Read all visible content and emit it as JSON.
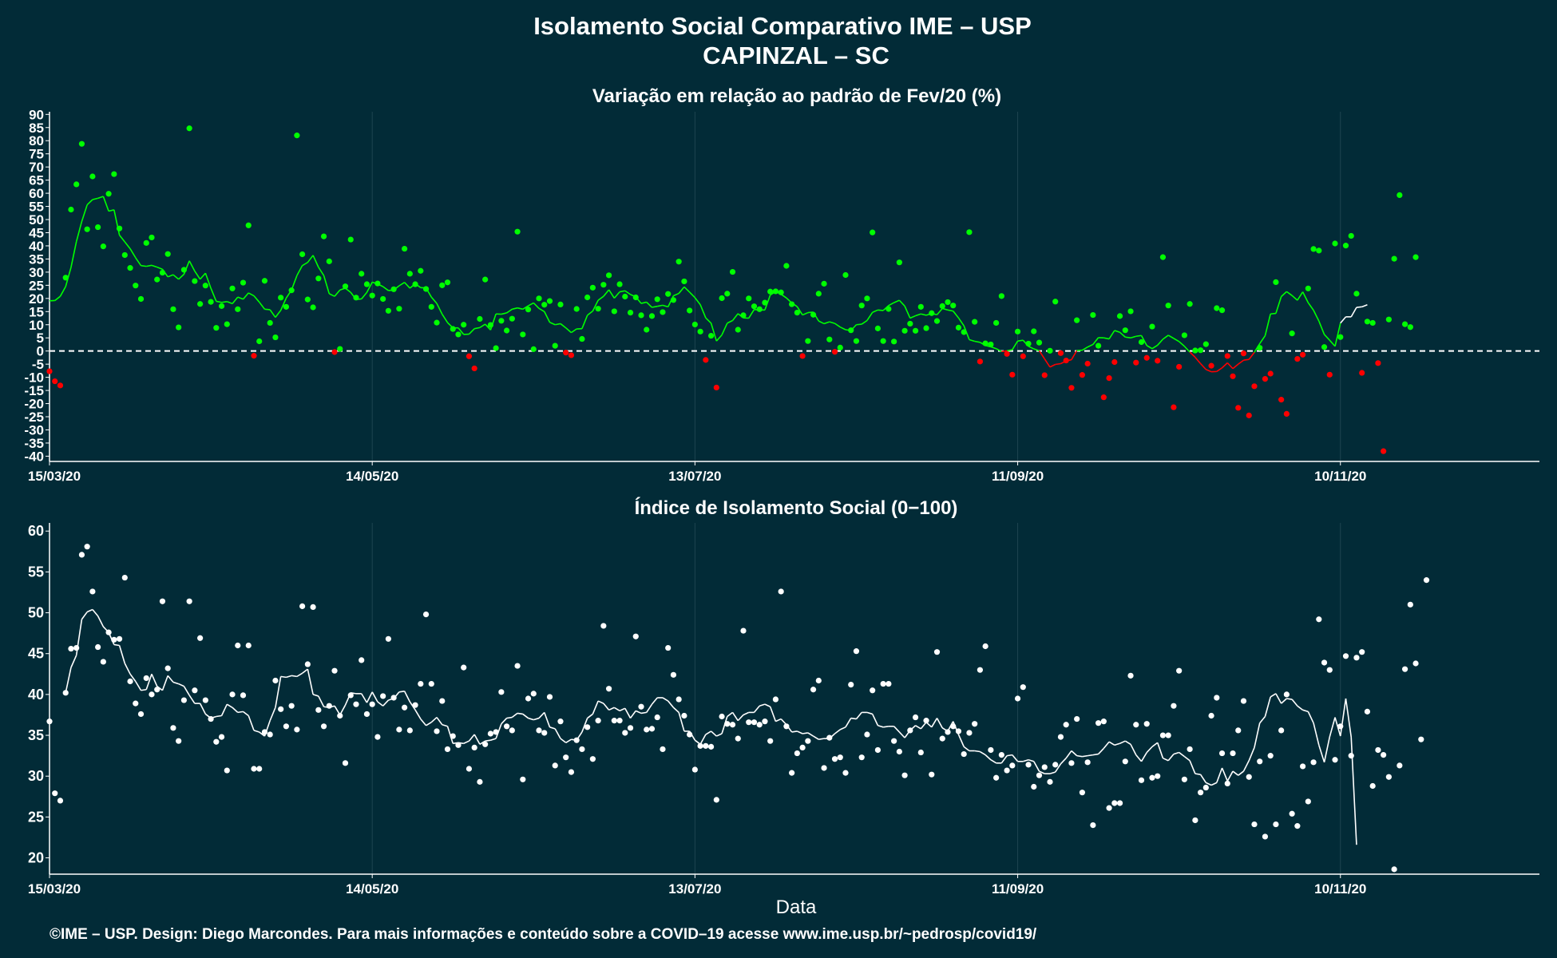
{
  "title": "Isolamento Social Comparativo IME – USP",
  "subtitle": "CAPINZAL – SC",
  "x_label": "Data",
  "footer": "©IME – USP. Design: Diego Marcondes. Para mais informações e conteúdo sobre a COVID–19 acesse www.ime.usp.br/~pedrosp/covid19/",
  "colors": {
    "background": "#022b37",
    "positive": "#00ff00",
    "negative": "#ff0000",
    "index": "#ffffff",
    "grid": "#1e4550",
    "axis": "#ffffff"
  },
  "x_axis": {
    "start_date": "15/03/20",
    "end_date": "17/12/20",
    "tick_labels": [
      "15/03/20",
      "14/05/20",
      "13/07/20",
      "11/09/20",
      "10/11/20"
    ]
  },
  "chart_data": [
    {
      "type": "scatter",
      "title": "Variação em relação ao padrão de Fev/20 (%)",
      "ylim": [
        -42,
        91
      ],
      "yticks": [
        -40,
        -35,
        -30,
        -25,
        -20,
        -15,
        -10,
        -5,
        0,
        5,
        10,
        15,
        20,
        25,
        30,
        35,
        40,
        45,
        50,
        55,
        60,
        65,
        70,
        75,
        80,
        85,
        90
      ],
      "reference_line": 0,
      "points": [
        -7.7,
        -11.5,
        -13.1,
        27.9,
        53.8,
        63.4,
        78.8,
        46.3,
        66.4,
        47.1,
        39.8,
        59.8,
        67.3,
        46.6,
        36.5,
        31.6,
        24.9,
        19.8,
        41.1,
        43.2,
        27.2,
        29.8,
        36.9,
        15.9,
        9.0,
        30.9,
        84.7,
        26.6,
        17.9,
        24.9,
        18.7,
        8.8,
        17.1,
        10.2,
        23.8,
        15.9,
        26.0,
        47.8,
        -1.8,
        3.7,
        26.7,
        10.7,
        5.2,
        20.3,
        16.8,
        23.1,
        82.0,
        36.8,
        19.6,
        16.6,
        27.6,
        43.6,
        34.1,
        -0.4,
        0.8,
        24.6,
        42.4,
        20.3,
        29.4,
        25.4,
        21.1,
        25.7,
        19.8,
        15.3,
        23.5,
        16.1,
        38.9,
        29.4,
        25.4,
        30.5,
        23.6,
        16.8,
        10.8,
        25.0,
        26.1,
        8.4,
        6.3,
        10.0,
        -2.0,
        -6.6,
        12.2,
        27.2,
        9.9,
        1.1,
        11.5,
        7.8,
        12.3,
        45.4,
        6.3,
        15.8,
        0.7,
        20.0,
        17.6,
        19.0,
        2.0,
        17.7,
        -0.6,
        -1.6,
        16.0,
        4.6,
        20.4,
        24.1,
        16.1,
        25.2,
        28.8,
        15.1,
        25.4,
        20.7,
        14.6,
        20.4,
        13.6,
        8.1,
        13.3,
        19.7,
        14.8,
        21.7,
        19.4,
        34.0,
        26.5,
        15.4,
        10.1,
        7.4,
        -3.4,
        5.8,
        -13.9,
        20.1,
        21.8,
        30.1,
        8.1,
        13.6,
        20.0,
        17.0,
        15.9,
        18.4,
        22.6,
        22.7,
        22.3,
        32.4,
        17.8,
        14.6,
        -1.9,
        3.8,
        13.8,
        21.8,
        25.6,
        4.4,
        -0.3,
        1.3,
        28.9,
        7.9,
        3.8,
        17.3,
        20.0,
        45.1,
        8.6,
        3.8,
        16.0,
        3.6,
        33.7,
        7.7,
        10.4,
        7.7,
        16.8,
        8.7,
        14.4,
        11.4,
        17.1,
        18.6,
        17.3,
        8.9,
        7.2,
        45.2,
        11.1,
        -4.0,
        2.9,
        2.5,
        10.7,
        20.9,
        -1.1,
        -9.0,
        7.4,
        -2.0,
        2.8,
        7.5,
        3.2,
        -9.2,
        0.1,
        18.8,
        -0.8,
        -3.6,
        -14.0,
        11.7,
        -9.1,
        -4.8,
        13.7,
        2.0,
        -17.6,
        -10.3,
        -4.2,
        13.3,
        7.9,
        15.1,
        -4.4,
        3.4,
        -2.6,
        9.3,
        -3.7,
        35.7,
        17.3,
        -21.4,
        -6.0,
        6.0,
        17.9,
        0.2,
        0.3,
        2.6,
        -5.6,
        16.3,
        15.5,
        -1.9,
        -9.6,
        -21.6,
        -0.9,
        -24.5,
        -13.4,
        1.2,
        -10.6,
        -8.6,
        26.2,
        -18.5,
        -23.9,
        6.7,
        -3.0,
        -1.4,
        23.8,
        38.8,
        38.2,
        1.5,
        -9.0,
        40.9,
        5.3,
        40.1,
        43.8,
        21.8,
        -8.3,
        11.2,
        10.7,
        -4.6,
        -38.1,
        12.0,
        35.1,
        59.3,
        10.2,
        9.1,
        35.7
      ],
      "moving_average": [
        19.1,
        19.2,
        20.8,
        24.5,
        31.8,
        41.6,
        49.3,
        55.6,
        57.6,
        58.1,
        58.8,
        53.2,
        53.7,
        44.1,
        41.5,
        38.9,
        35.5,
        32.5,
        32.2,
        32.6,
        31.9,
        31.1,
        28.2,
        29.0,
        27.3,
        29.2,
        34.3,
        30.4,
        27.3,
        29.6,
        23.9,
        18.9,
        18.5,
        18.8,
        18.0,
        20.5,
        19.7,
        22.1,
        21.0,
        18.6,
        15.9,
        15.7,
        12.8,
        15.5,
        20.1,
        23.2,
        28.7,
        32.5,
        33.7,
        36.4,
        31.9,
        28.7,
        21.8,
        20.8,
        23.2,
        23.9,
        22.3,
        19.6,
        19.8,
        22.3,
        26.2,
        25.5,
        24.5,
        23.0,
        23.2,
        24.8,
        26.1,
        23.9,
        25.6,
        24.1,
        24.0,
        20.5,
        18.1,
        14.0,
        10.8,
        8.8,
        8.8,
        6.3,
        6.4,
        8.5,
        8.9,
        10.2,
        8.0,
        14.1,
        14.0,
        14.5,
        15.9,
        16.4,
        15.9,
        17.2,
        18.3,
        16.2,
        15.0,
        10.9,
        10.0,
        10.4,
        8.8,
        7.0,
        8.4,
        8.5,
        13.6,
        15.2,
        19.3,
        20.8,
        23.3,
        20.1,
        22.5,
        22.9,
        21.5,
        20.6,
        18.1,
        18.6,
        16.6,
        17.0,
        17.4,
        16.8,
        21.0,
        21.9,
        24.4,
        22.4,
        20.3,
        17.6,
        12.6,
        10.6,
        3.8,
        6.1,
        10.6,
        11.6,
        14.2,
        12.6,
        12.5,
        15.8,
        15.6,
        15.6,
        21.3,
        22.6,
        21.6,
        20.2,
        18.3,
        16.9,
        13.7,
        14.6,
        14.8,
        11.4,
        10.4,
        11.1,
        10.5,
        9.1,
        8.1,
        7.8,
        10.0,
        10.2,
        11.6,
        14.7,
        15.6,
        15.4,
        17.3,
        18.4,
        19.3,
        17.1,
        12.5,
        13.4,
        14.1,
        13.6,
        14.3,
        13.8,
        16.2,
        15.6,
        15.2,
        12.6,
        9.6,
        4.3,
        3.7,
        3.3,
        2.1,
        1.6,
        0.9,
        -0.2,
        0.1,
        0.5,
        3.8,
        4.1,
        1.8,
        0.8,
        0.1,
        -3.0,
        -6.1,
        -5.1,
        -4.8,
        -3.8,
        -3.3,
        0.2,
        0.3,
        1.5,
        2.5,
        5.1,
        5.0,
        4.6,
        7.8,
        7.1,
        5.3,
        5.0,
        5.6,
        5.9,
        2.1,
        0.9,
        2.2,
        4.5,
        6.0,
        4.8,
        3.6,
        1.8,
        -0.4,
        -2.4,
        -4.8,
        -7.0,
        -7.9,
        -7.8,
        -6.4,
        -4.5,
        -6.7,
        -5.0,
        -3.5,
        -3.2,
        -0.5,
        2.8,
        5.8,
        14.1,
        14.3,
        20.7,
        22.6,
        21.1,
        19.3,
        22.5,
        18.4,
        15.5,
        11.4,
        6.3,
        4.1,
        1.8,
        10.6,
        13.0,
        13.0,
        16.6,
        16.8,
        17.6
      ]
    },
    {
      "type": "scatter",
      "title": "Índice de Isolamento Social (0−100)",
      "ylim": [
        18,
        61
      ],
      "yticks": [
        20,
        25,
        30,
        35,
        40,
        45,
        50,
        55,
        60
      ],
      "points": [
        36.7,
        27.9,
        27.0,
        40.2,
        45.6,
        45.7,
        57.1,
        58.1,
        52.6,
        45.8,
        44.0,
        47.6,
        46.7,
        46.8,
        54.3,
        41.6,
        38.9,
        37.6,
        42.0,
        40.0,
        40.6,
        51.4,
        43.2,
        35.9,
        34.3,
        39.3,
        51.4,
        40.5,
        46.9,
        39.3,
        37.0,
        34.2,
        34.8,
        30.7,
        40.0,
        46.0,
        39.9,
        46.0,
        30.9,
        30.9,
        35.4,
        35.1,
        41.7,
        38.2,
        36.1,
        38.6,
        35.7,
        50.8,
        43.7,
        50.7,
        38.1,
        36.1,
        38.6,
        42.9,
        37.4,
        31.6,
        39.9,
        38.8,
        44.2,
        37.6,
        38.8,
        34.8,
        39.8,
        46.8,
        39.6,
        35.7,
        38.4,
        35.6,
        38.7,
        41.3,
        49.8,
        41.3,
        35.5,
        39.2,
        33.3,
        34.9,
        33.8,
        43.3,
        30.9,
        33.5,
        29.3,
        33.9,
        35.2,
        35.4,
        40.3,
        36.1,
        35.6,
        43.5,
        29.6,
        39.5,
        40.1,
        35.6,
        35.3,
        39.7,
        31.3,
        36.7,
        32.3,
        30.5,
        34.4,
        33.3,
        36.0,
        32.1,
        36.8,
        48.4,
        40.7,
        36.8,
        36.8,
        35.3,
        35.9,
        47.1,
        38.5,
        35.7,
        35.8,
        37.2,
        33.3,
        45.7,
        42.4,
        39.4,
        37.4,
        35.1,
        30.8,
        33.7,
        33.7,
        33.6,
        27.1,
        37.3,
        36.4,
        36.3,
        34.6,
        47.8,
        36.6,
        36.6,
        36.3,
        36.7,
        34.3,
        39.4,
        52.6,
        36.1,
        30.4,
        32.8,
        33.5,
        34.3,
        40.6,
        41.7,
        31.0,
        34.7,
        32.1,
        32.3,
        30.4,
        41.2,
        45.3,
        32.3,
        35.1,
        40.5,
        33.2,
        41.3,
        41.3,
        34.3,
        33.0,
        30.1,
        35.6,
        37.2,
        32.9,
        36.8,
        30.2,
        45.2,
        34.6,
        35.4,
        36.1,
        35.5,
        32.7,
        35.3,
        36.4,
        43.0,
        45.9,
        33.2,
        29.8,
        32.6,
        30.7,
        31.3,
        39.5,
        40.9,
        31.4,
        28.7,
        30.1,
        31.1,
        29.3,
        31.4,
        34.8,
        36.3,
        31.6,
        37.0,
        28.0,
        31.7,
        24.0,
        36.5,
        36.7,
        26.1,
        26.7,
        26.7,
        31.8,
        42.3,
        36.3,
        29.5,
        36.4,
        29.8,
        30.0,
        35.0,
        35.0,
        38.6,
        42.9,
        29.6,
        33.3,
        24.6,
        28.0,
        28.6,
        37.4,
        39.6,
        32.8,
        29.1,
        32.8,
        35.6,
        39.2,
        29.9,
        24.1,
        31.8,
        22.6,
        32.5,
        24.1,
        35.6,
        40.0,
        25.4,
        23.9,
        31.2,
        26.9,
        31.7,
        49.2,
        43.9,
        43.0,
        32.0,
        36.1,
        44.7,
        32.5,
        44.5,
        45.2,
        37.9,
        28.8,
        33.2,
        32.6,
        29.9,
        18.6,
        31.3,
        43.1,
        51.0,
        43.8,
        34.5,
        54.0
      ],
      "moving_average": [
        null,
        null,
        null,
        40.2,
        43.3,
        44.8,
        49.2,
        50.1,
        50.4,
        49.6,
        48.3,
        47.6,
        46.1,
        46.0,
        43.8,
        42.5,
        41.6,
        40.5,
        40.6,
        42.5,
        41.0,
        40.5,
        42.3,
        41.5,
        41.3,
        41.0,
        39.9,
        38.9,
        38.9,
        37.6,
        37.1,
        37.3,
        37.4,
        38.8,
        38.4,
        37.8,
        37.9,
        37.4,
        35.6,
        35.4,
        34.9,
        36.8,
        38.4,
        42.2,
        42.1,
        42.3,
        42.2,
        42.6,
        43.1,
        40.0,
        39.8,
        38.5,
        38.4,
        38.6,
        37.5,
        38.7,
        40.2,
        40.1,
        40.1,
        39.0,
        40.3,
        39.1,
        38.6,
        39.3,
        39.5,
        40.3,
        40.4,
        39.1,
        38.1,
        37.0,
        36.2,
        36.6,
        37.2,
        36.3,
        36.1,
        34.0,
        34.1,
        34.0,
        34.3,
        35.1,
        33.9,
        34.3,
        34.4,
        34.6,
        36.4,
        37.1,
        37.2,
        37.7,
        37.6,
        37.1,
        36.9,
        37.1,
        37.8,
        36.0,
        35.8,
        34.6,
        34.1,
        34.5,
        34.4,
        35.4,
        37.1,
        37.6,
        39.2,
        38.9,
        38.1,
        38.4,
        38.0,
        38.3,
        37.1,
        38.0,
        37.7,
        37.8,
        38.8,
        39.6,
        39.6,
        39.2,
        38.4,
        37.8,
        35.5,
        35.5,
        34.4,
        33.9,
        35.1,
        35.5,
        34.9,
        35.2,
        37.3,
        37.8,
        36.8,
        37.5,
        37.8,
        37.8,
        38.6,
        38.8,
        38.5,
        36.7,
        37.0,
        36.3,
        35.4,
        35.5,
        35.2,
        35.3,
        34.9,
        34.5,
        34.6,
        34.6,
        35.2,
        35.7,
        36.0,
        37.1,
        37.0,
        37.8,
        37.8,
        37.6,
        36.2,
        36.0,
        36.1,
        36.1,
        35.4,
        34.7,
        35.6,
        36.2,
        35.8,
        36.6,
        36.0,
        37.1,
        35.9,
        35.5,
        36.7,
        35.1,
        33.6,
        33.1,
        33.1,
        33.0,
        32.6,
        32.0,
        31.6,
        31.6,
        32.5,
        32.6,
        31.8,
        31.8,
        32.0,
        31.8,
        30.6,
        30.3,
        30.3,
        30.5,
        31.5,
        32.2,
        33.1,
        32.5,
        32.4,
        32.5,
        32.6,
        32.7,
        33.4,
        34.2,
        33.8,
        34.0,
        34.3,
        33.9,
        32.6,
        31.8,
        32.9,
        33.6,
        34.1,
        32.2,
        31.9,
        32.7,
        32.9,
        32.4,
        31.9,
        30.3,
        30.2,
        29.2,
        28.9,
        29.2,
        31.0,
        29.4,
        30.6,
        30.1,
        30.6,
        31.9,
        33.5,
        36.5,
        37.3,
        39.7,
        40.1,
        38.9,
        39.5,
        39.4,
        38.6,
        38.1,
        37.9,
        36.5,
        33.8,
        31.7,
        34.8,
        37.2,
        34.9,
        39.5,
        34.8,
        21.6
      ]
    }
  ]
}
